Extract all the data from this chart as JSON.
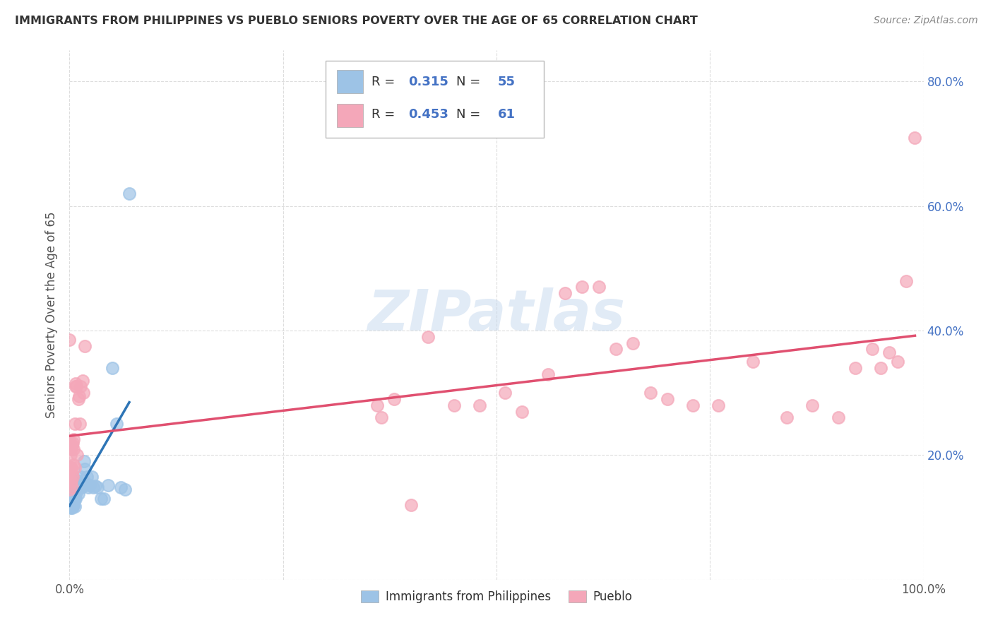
{
  "title": "IMMIGRANTS FROM PHILIPPINES VS PUEBLO SENIORS POVERTY OVER THE AGE OF 65 CORRELATION CHART",
  "source": "Source: ZipAtlas.com",
  "ylabel": "Seniors Poverty Over the Age of 65",
  "xlim": [
    0.0,
    1.0
  ],
  "ylim": [
    0.0,
    0.85
  ],
  "blue_R": 0.315,
  "blue_N": 55,
  "pink_R": 0.453,
  "pink_N": 61,
  "blue_color": "#9DC3E6",
  "pink_color": "#F4A7B9",
  "blue_line_color": "#2E75B6",
  "pink_line_color": "#E05070",
  "grid_color": "#DDDDDD",
  "background_color": "#FFFFFF",
  "watermark": "ZIPatlas",
  "blue_x": [
    0.0,
    0.0,
    0.0,
    0.001,
    0.001,
    0.001,
    0.001,
    0.002,
    0.002,
    0.002,
    0.002,
    0.003,
    0.003,
    0.003,
    0.003,
    0.004,
    0.004,
    0.004,
    0.004,
    0.005,
    0.005,
    0.005,
    0.006,
    0.006,
    0.006,
    0.007,
    0.007,
    0.008,
    0.009,
    0.01,
    0.01,
    0.011,
    0.012,
    0.013,
    0.014,
    0.015,
    0.016,
    0.017,
    0.018,
    0.019,
    0.02,
    0.022,
    0.024,
    0.026,
    0.028,
    0.03,
    0.033,
    0.037,
    0.04,
    0.045,
    0.05,
    0.055,
    0.06,
    0.065,
    0.07
  ],
  "blue_y": [
    0.12,
    0.13,
    0.14,
    0.115,
    0.125,
    0.135,
    0.145,
    0.118,
    0.128,
    0.138,
    0.148,
    0.115,
    0.125,
    0.133,
    0.145,
    0.118,
    0.128,
    0.138,
    0.148,
    0.12,
    0.132,
    0.145,
    0.118,
    0.13,
    0.143,
    0.13,
    0.145,
    0.14,
    0.148,
    0.138,
    0.158,
    0.155,
    0.148,
    0.165,
    0.148,
    0.152,
    0.15,
    0.19,
    0.178,
    0.155,
    0.165,
    0.148,
    0.152,
    0.165,
    0.148,
    0.15,
    0.148,
    0.13,
    0.13,
    0.152,
    0.34,
    0.25,
    0.148,
    0.145,
    0.62
  ],
  "pink_x": [
    0.0,
    0.0,
    0.0,
    0.001,
    0.001,
    0.001,
    0.001,
    0.002,
    0.002,
    0.002,
    0.003,
    0.003,
    0.003,
    0.004,
    0.004,
    0.005,
    0.005,
    0.005,
    0.006,
    0.006,
    0.007,
    0.007,
    0.008,
    0.009,
    0.01,
    0.011,
    0.012,
    0.013,
    0.015,
    0.016,
    0.018,
    0.36,
    0.365,
    0.38,
    0.4,
    0.42,
    0.45,
    0.48,
    0.51,
    0.53,
    0.56,
    0.58,
    0.6,
    0.62,
    0.64,
    0.66,
    0.68,
    0.7,
    0.73,
    0.76,
    0.8,
    0.84,
    0.87,
    0.9,
    0.92,
    0.94,
    0.95,
    0.96,
    0.97,
    0.98,
    0.99
  ],
  "pink_y": [
    0.145,
    0.165,
    0.385,
    0.155,
    0.18,
    0.2,
    0.22,
    0.158,
    0.18,
    0.21,
    0.148,
    0.17,
    0.215,
    0.165,
    0.22,
    0.185,
    0.21,
    0.225,
    0.25,
    0.18,
    0.31,
    0.315,
    0.31,
    0.2,
    0.29,
    0.295,
    0.25,
    0.31,
    0.32,
    0.3,
    0.375,
    0.28,
    0.26,
    0.29,
    0.12,
    0.39,
    0.28,
    0.28,
    0.3,
    0.27,
    0.33,
    0.46,
    0.47,
    0.47,
    0.37,
    0.38,
    0.3,
    0.29,
    0.28,
    0.28,
    0.35,
    0.26,
    0.28,
    0.26,
    0.34,
    0.37,
    0.34,
    0.365,
    0.35,
    0.48,
    0.71
  ]
}
